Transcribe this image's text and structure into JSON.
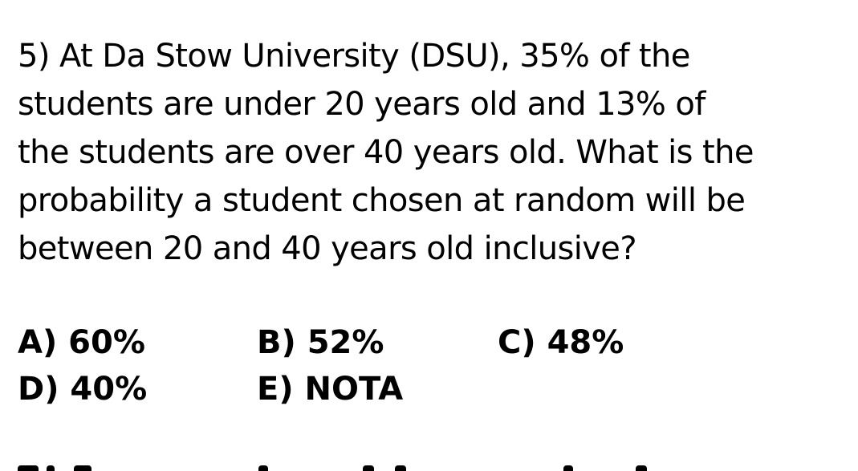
{
  "question": {
    "lines": [
      "5) At Da Stow University (DSU), 35% of the",
      "students are under 20 years old and 13% of",
      "the students are over 40 years old.  What is the",
      "probability a student chosen at random will be",
      "between 20 and 40 years old inclusive?"
    ]
  },
  "choices": {
    "a": "A) 60%",
    "b": "B) 52%",
    "c": "C) 48%",
    "d": "D) 40%",
    "e": "E) NOTA"
  }
}
